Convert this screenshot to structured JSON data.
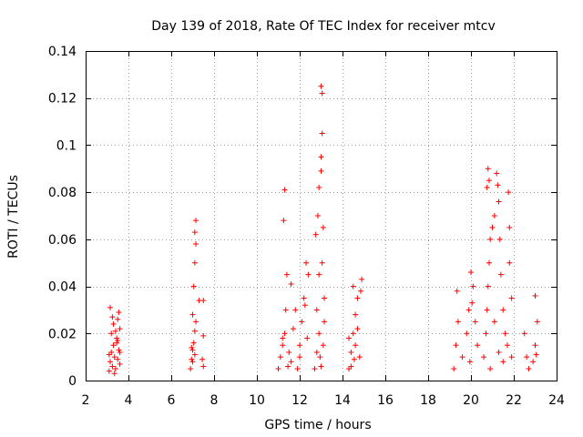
{
  "chart_data": {
    "type": "scatter",
    "title": "Day 139 of 2018, Rate Of TEC Index for receiver mtcv",
    "xlabel": "GPS time / hours",
    "ylabel": "ROTI / TECUs",
    "xlim": [
      2,
      24
    ],
    "ylim": [
      0,
      0.14
    ],
    "xticks": [
      "2",
      "4",
      "6",
      "8",
      "10",
      "12",
      "14",
      "16",
      "18",
      "20",
      "22",
      "24"
    ],
    "yticks": [
      "0",
      "0.02",
      "0.04",
      "0.06",
      "0.08",
      "0.1",
      "0.12",
      "0.14"
    ],
    "grid": true,
    "marker": "+",
    "color": "#ff0000",
    "series": [
      {
        "name": "ROTI",
        "points": [
          [
            3.1,
            0.004
          ],
          [
            3.15,
            0.008
          ],
          [
            3.2,
            0.012
          ],
          [
            3.25,
            0.006
          ],
          [
            3.3,
            0.015
          ],
          [
            3.35,
            0.01
          ],
          [
            3.4,
            0.005
          ],
          [
            3.45,
            0.018
          ],
          [
            3.5,
            0.009
          ],
          [
            3.55,
            0.013
          ],
          [
            3.6,
            0.007
          ],
          [
            3.2,
            0.02
          ],
          [
            3.3,
            0.024
          ],
          [
            3.4,
            0.021
          ],
          [
            3.5,
            0.026
          ],
          [
            3.55,
            0.029
          ],
          [
            3.6,
            0.022
          ],
          [
            3.15,
            0.031
          ],
          [
            3.25,
            0.027
          ],
          [
            3.45,
            0.016
          ],
          [
            3.1,
            0.011
          ],
          [
            3.35,
            0.003
          ],
          [
            3.5,
            0.017
          ],
          [
            3.6,
            0.012
          ],
          [
            6.9,
            0.005
          ],
          [
            6.95,
            0.009
          ],
          [
            7.0,
            0.013
          ],
          [
            7.05,
            0.016
          ],
          [
            7.1,
            0.021
          ],
          [
            7.15,
            0.025
          ],
          [
            7.0,
            0.028
          ],
          [
            7.05,
            0.04
          ],
          [
            7.1,
            0.05
          ],
          [
            7.15,
            0.058
          ],
          [
            7.1,
            0.063
          ],
          [
            7.15,
            0.068
          ],
          [
            7.3,
            0.034
          ],
          [
            7.5,
            0.034
          ],
          [
            7.5,
            0.019
          ],
          [
            7.45,
            0.009
          ],
          [
            7.5,
            0.006
          ],
          [
            7.0,
            0.008
          ],
          [
            7.1,
            0.011
          ],
          [
            6.95,
            0.014
          ],
          [
            11.0,
            0.005
          ],
          [
            11.1,
            0.01
          ],
          [
            11.2,
            0.015
          ],
          [
            11.3,
            0.02
          ],
          [
            11.25,
            0.068
          ],
          [
            11.3,
            0.081
          ],
          [
            11.4,
            0.045
          ],
          [
            11.35,
            0.03
          ],
          [
            11.5,
            0.012
          ],
          [
            11.6,
            0.008
          ],
          [
            11.7,
            0.022
          ],
          [
            11.8,
            0.03
          ],
          [
            11.9,
            0.005
          ],
          [
            12.0,
            0.015
          ],
          [
            12.1,
            0.025
          ],
          [
            12.2,
            0.035
          ],
          [
            12.3,
            0.05
          ],
          [
            12.4,
            0.045
          ],
          [
            12.0,
            0.01
          ],
          [
            11.6,
            0.041
          ],
          [
            11.2,
            0.018
          ],
          [
            11.45,
            0.006
          ],
          [
            12.25,
            0.032
          ],
          [
            12.35,
            0.018
          ],
          [
            12.7,
            0.005
          ],
          [
            12.8,
            0.012
          ],
          [
            12.9,
            0.02
          ],
          [
            12.8,
            0.03
          ],
          [
            12.9,
            0.045
          ],
          [
            12.75,
            0.062
          ],
          [
            12.85,
            0.07
          ],
          [
            12.9,
            0.082
          ],
          [
            13.0,
            0.095
          ],
          [
            13.05,
            0.105
          ],
          [
            13.0,
            0.125
          ],
          [
            13.05,
            0.122
          ],
          [
            13.0,
            0.089
          ],
          [
            13.1,
            0.065
          ],
          [
            13.05,
            0.05
          ],
          [
            13.15,
            0.035
          ],
          [
            13.1,
            0.015
          ],
          [
            12.95,
            0.01
          ],
          [
            13.0,
            0.006
          ],
          [
            13.15,
            0.025
          ],
          [
            14.3,
            0.005
          ],
          [
            14.4,
            0.012
          ],
          [
            14.5,
            0.02
          ],
          [
            14.6,
            0.028
          ],
          [
            14.7,
            0.035
          ],
          [
            14.5,
            0.04
          ],
          [
            14.8,
            0.01
          ],
          [
            14.9,
            0.043
          ],
          [
            14.85,
            0.038
          ],
          [
            14.6,
            0.015
          ],
          [
            14.4,
            0.006
          ],
          [
            14.7,
            0.022
          ],
          [
            14.3,
            0.018
          ],
          [
            14.55,
            0.009
          ],
          [
            19.2,
            0.005
          ],
          [
            19.3,
            0.015
          ],
          [
            19.4,
            0.025
          ],
          [
            19.35,
            0.038
          ],
          [
            19.6,
            0.01
          ],
          [
            19.8,
            0.02
          ],
          [
            19.9,
            0.03
          ],
          [
            20.0,
            0.046
          ],
          [
            20.1,
            0.04
          ],
          [
            20.2,
            0.025
          ],
          [
            20.3,
            0.015
          ],
          [
            19.95,
            0.008
          ],
          [
            20.05,
            0.033
          ],
          [
            20.6,
            0.01
          ],
          [
            20.7,
            0.02
          ],
          [
            20.75,
            0.03
          ],
          [
            20.8,
            0.04
          ],
          [
            20.85,
            0.05
          ],
          [
            20.9,
            0.06
          ],
          [
            20.75,
            0.082
          ],
          [
            20.8,
            0.09
          ],
          [
            20.85,
            0.085
          ],
          [
            21.0,
            0.065
          ],
          [
            21.1,
            0.07
          ],
          [
            21.2,
            0.088
          ],
          [
            21.25,
            0.083
          ],
          [
            21.3,
            0.076
          ],
          [
            21.35,
            0.06
          ],
          [
            21.4,
            0.045
          ],
          [
            21.5,
            0.03
          ],
          [
            21.6,
            0.02
          ],
          [
            21.7,
            0.015
          ],
          [
            21.75,
            0.08
          ],
          [
            21.8,
            0.065
          ],
          [
            21.8,
            0.05
          ],
          [
            21.9,
            0.035
          ],
          [
            21.9,
            0.01
          ],
          [
            20.9,
            0.005
          ],
          [
            21.1,
            0.025
          ],
          [
            21.3,
            0.012
          ],
          [
            21.5,
            0.008
          ],
          [
            22.5,
            0.02
          ],
          [
            22.6,
            0.01
          ],
          [
            22.7,
            0.005
          ],
          [
            23.0,
            0.036
          ],
          [
            23.1,
            0.025
          ],
          [
            23.0,
            0.015
          ],
          [
            22.9,
            0.008
          ],
          [
            23.05,
            0.011
          ]
        ]
      }
    ]
  }
}
